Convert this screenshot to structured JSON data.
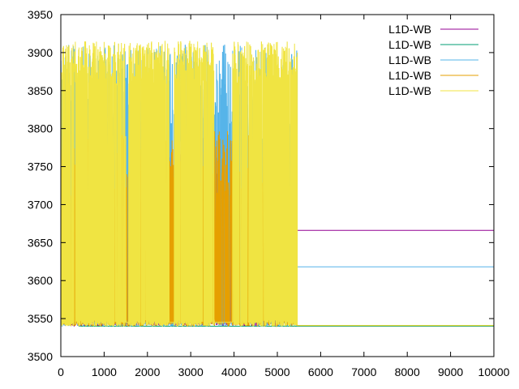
{
  "chart_data": {
    "type": "line",
    "title": "",
    "xlabel": "",
    "ylabel": "",
    "xlim": [
      0,
      10000
    ],
    "ylim": [
      3500,
      3950
    ],
    "xticks": [
      0,
      1000,
      2000,
      3000,
      4000,
      5000,
      6000,
      7000,
      8000,
      9000,
      10000
    ],
    "yticks": [
      3500,
      3550,
      3600,
      3650,
      3700,
      3750,
      3800,
      3850,
      3900,
      3950
    ],
    "grid": false,
    "legend_position": "top-right",
    "series": [
      {
        "name": "L1D-WB",
        "color": "#940094",
        "description": "noisy 3540-3790 until ~5450, then flat",
        "noise_end_x": 5450,
        "flat_value": 3666,
        "band": [
          3540,
          3795
        ],
        "points": [
          [
            0,
            3720
          ],
          [
            60,
            3545
          ],
          [
            150,
            3790
          ],
          [
            300,
            3560
          ],
          [
            600,
            3780
          ],
          [
            1000,
            3550
          ],
          [
            1400,
            3790
          ],
          [
            1800,
            3545
          ],
          [
            2400,
            3790
          ],
          [
            2800,
            3560
          ],
          [
            3200,
            3785
          ],
          [
            3600,
            3600
          ],
          [
            4000,
            3790
          ],
          [
            4500,
            3545
          ],
          [
            5000,
            3790
          ],
          [
            5450,
            3666
          ],
          [
            10000,
            3666
          ]
        ]
      },
      {
        "name": "L1D-WB",
        "color": "#009e73",
        "description": "short burst near start",
        "noise_end_x": 420,
        "flat_value": 3540,
        "band": [
          3537,
          3862
        ],
        "points": [
          [
            0,
            3540
          ],
          [
            80,
            3790
          ],
          [
            150,
            3560
          ],
          [
            200,
            3862
          ],
          [
            260,
            3550
          ],
          [
            330,
            3790
          ],
          [
            420,
            3540
          ],
          [
            10000,
            3540
          ]
        ]
      },
      {
        "name": "L1D-WB",
        "color": "#56b4e9",
        "description": "noisy until ~5450, then flat near 3618",
        "noise_end_x": 5450,
        "flat_value": 3618,
        "band": [
          3540,
          3910
        ],
        "points": [
          [
            0,
            3700
          ],
          [
            180,
            3910
          ],
          [
            300,
            3560
          ],
          [
            520,
            3908
          ],
          [
            700,
            3560
          ],
          [
            1200,
            3790
          ],
          [
            2000,
            3550
          ],
          [
            3000,
            3790
          ],
          [
            4000,
            3550
          ],
          [
            5000,
            3790
          ],
          [
            5450,
            3618
          ],
          [
            10000,
            3618
          ]
        ]
      },
      {
        "name": "L1D-WB",
        "color": "#e69f00",
        "description": "noisy until ~5450, then flat near 3541",
        "noise_end_x": 5450,
        "flat_value": 3541,
        "band": [
          3540,
          3797
        ],
        "points": [
          [
            0,
            3790
          ],
          [
            300,
            3545
          ],
          [
            700,
            3797
          ],
          [
            1000,
            3560
          ],
          [
            1400,
            3790
          ],
          [
            2200,
            3545
          ],
          [
            3000,
            3790
          ],
          [
            4200,
            3545
          ],
          [
            5000,
            3790
          ],
          [
            5450,
            3541
          ],
          [
            10000,
            3541
          ]
        ]
      },
      {
        "name": "L1D-WB",
        "color": "#f0e442",
        "description": "dense noisy bands with gaps, then flat near 3541",
        "noise_end_x": 5460,
        "flat_value": 3541,
        "band": [
          3540,
          3915
        ],
        "points": [
          [
            0,
            3910
          ],
          [
            1000,
            3914
          ],
          [
            1500,
            3790
          ],
          [
            2500,
            3560
          ],
          [
            3450,
            3847
          ],
          [
            4050,
            3865
          ],
          [
            5000,
            3914
          ],
          [
            5460,
            3541
          ],
          [
            10000,
            3541
          ]
        ]
      }
    ]
  }
}
